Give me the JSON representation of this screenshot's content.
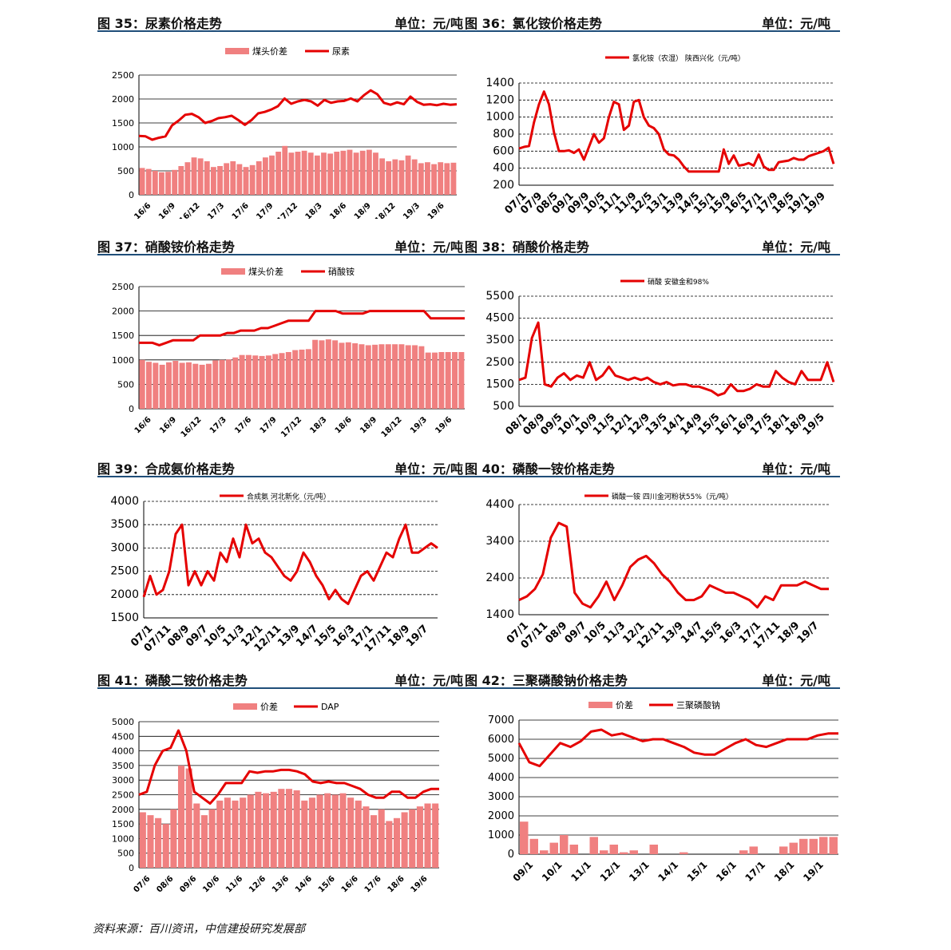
{
  "source": "资料来源：百川资讯，中信建投研究发展部",
  "colors": {
    "line": "#e50000",
    "bar": "#f08080",
    "grid": "#000000",
    "rule": "#1f4e79"
  },
  "chart_data": [
    {
      "id": "c35",
      "type": "bar+line",
      "title": "图 35：尿素价格走势",
      "unit": "单位：元/吨",
      "ylim": [
        0,
        2500
      ],
      "yticks": [
        0,
        500,
        1000,
        1500,
        2000,
        2500
      ],
      "xticks": [
        "16/6",
        "16/9",
        "16/12",
        "17/3",
        "17/6",
        "17/9",
        "17/12",
        "18/3",
        "18/6",
        "18/9",
        "18/12",
        "19/3",
        "19/6"
      ],
      "bar_name": "煤头价差",
      "line_name": "尿素",
      "line": [
        1230,
        1220,
        1150,
        1190,
        1220,
        1450,
        1550,
        1670,
        1690,
        1620,
        1500,
        1540,
        1600,
        1620,
        1650,
        1560,
        1460,
        1560,
        1700,
        1730,
        1780,
        1850,
        2010,
        1900,
        1950,
        1980,
        1950,
        1860,
        1980,
        1920,
        1950,
        1960,
        2010,
        1950,
        2080,
        2180,
        2100,
        1920,
        1880,
        1930,
        1890,
        2050,
        1940,
        1880,
        1890,
        1870,
        1900,
        1880,
        1890
      ],
      "bars": [
        560,
        540,
        500,
        470,
        480,
        520,
        600,
        680,
        780,
        760,
        700,
        580,
        600,
        660,
        700,
        640,
        580,
        620,
        700,
        780,
        820,
        900,
        1020,
        880,
        900,
        920,
        880,
        820,
        880,
        860,
        900,
        920,
        940,
        880,
        920,
        940,
        880,
        760,
        700,
        740,
        720,
        820,
        740,
        660,
        680,
        640,
        680,
        660,
        670
      ]
    },
    {
      "id": "c36",
      "type": "line",
      "title": "图 36：氯化铵价格走势",
      "unit": "单位：元/吨",
      "ylim": [
        200,
        1400
      ],
      "yticks": [
        200,
        400,
        600,
        800,
        1000,
        1200,
        1400
      ],
      "xticks": [
        "07/1",
        "07/9",
        "08/5",
        "09/1",
        "09/9",
        "10/5",
        "11/1",
        "11/9",
        "12/5",
        "13/1",
        "13/9",
        "14/5",
        "15/1",
        "15/9",
        "16/5",
        "17/1",
        "17/9",
        "18/5",
        "19/1",
        "19/9"
      ],
      "line_name": "氯化铵（农湿） 陕西兴化（元/吨）",
      "line": [
        630,
        650,
        660,
        940,
        1150,
        1300,
        1150,
        820,
        600,
        600,
        610,
        580,
        620,
        500,
        650,
        800,
        700,
        750,
        1000,
        1180,
        1150,
        850,
        900,
        1180,
        1200,
        1000,
        900,
        870,
        800,
        620,
        560,
        550,
        500,
        420,
        360,
        360,
        360,
        360,
        360,
        360,
        360,
        620,
        450,
        550,
        430,
        440,
        460,
        430,
        560,
        420,
        380,
        380,
        470,
        480,
        490,
        520,
        500,
        500,
        540,
        560,
        580,
        600,
        640,
        450
      ]
    },
    {
      "id": "c37",
      "type": "bar+line",
      "title": "图 37：硝酸铵价格走势",
      "unit": "单位：元/吨",
      "ylim": [
        0,
        2500
      ],
      "yticks": [
        0,
        500,
        1000,
        1500,
        2000,
        2500
      ],
      "xticks": [
        "16/6",
        "16/9",
        "16/12",
        "17/3",
        "17/6",
        "17/9",
        "17/12",
        "18/3",
        "18/6",
        "18/9",
        "18/12",
        "19/3",
        "19/6"
      ],
      "bar_name": "煤头价差",
      "line_name": "硝酸铵",
      "line": [
        1350,
        1350,
        1350,
        1300,
        1350,
        1400,
        1400,
        1400,
        1400,
        1500,
        1500,
        1500,
        1500,
        1550,
        1550,
        1600,
        1600,
        1600,
        1650,
        1650,
        1700,
        1750,
        1800,
        1800,
        1800,
        1800,
        2000,
        2000,
        2000,
        2000,
        1950,
        1950,
        1950,
        1950,
        2000,
        2000,
        2000,
        2000,
        2000,
        2000,
        2000,
        2000,
        2000,
        1850,
        1850,
        1850,
        1850,
        1850,
        1850
      ],
      "bars": [
        1000,
        960,
        940,
        900,
        950,
        980,
        940,
        950,
        920,
        900,
        920,
        990,
        1000,
        1010,
        1050,
        1100,
        1100,
        1090,
        1080,
        1090,
        1120,
        1140,
        1160,
        1200,
        1210,
        1220,
        1410,
        1400,
        1420,
        1400,
        1350,
        1360,
        1340,
        1320,
        1300,
        1310,
        1320,
        1320,
        1320,
        1320,
        1300,
        1300,
        1280,
        1150,
        1150,
        1160,
        1160,
        1160,
        1160
      ]
    },
    {
      "id": "c38",
      "type": "line",
      "title": "图 38：硝酸价格走势",
      "unit": "单位：元/吨",
      "ylim": [
        500,
        5500
      ],
      "yticks": [
        500,
        1500,
        2500,
        3500,
        4500,
        5500
      ],
      "xticks": [
        "08/1",
        "08/9",
        "09/5",
        "10/1",
        "10/9",
        "11/5",
        "12/1",
        "12/9",
        "13/5",
        "14/1",
        "14/9",
        "15/5",
        "16/1",
        "16/9",
        "17/5",
        "18/1",
        "18/9",
        "19/5"
      ],
      "line_name": "硝酸 安徽金和98%",
      "line": [
        1700,
        1800,
        3600,
        4300,
        1500,
        1400,
        1800,
        2000,
        1700,
        1900,
        1800,
        2500,
        1700,
        1900,
        2300,
        1900,
        1800,
        1700,
        1800,
        1700,
        1800,
        1600,
        1500,
        1600,
        1450,
        1500,
        1500,
        1400,
        1400,
        1300,
        1200,
        1000,
        1100,
        1500,
        1200,
        1200,
        1300,
        1500,
        1400,
        1400,
        2100,
        1800,
        1600,
        1500,
        2100,
        1700,
        1700,
        1700,
        2500,
        1600
      ]
    },
    {
      "id": "c39",
      "type": "line",
      "title": "图 39：合成氨价格走势",
      "unit": "单位：元/吨",
      "ylim": [
        1500,
        4000
      ],
      "yticks": [
        1500,
        2000,
        2500,
        3000,
        3500,
        4000
      ],
      "xticks": [
        "07/1",
        "07/11",
        "08/9",
        "09/7",
        "10/5",
        "11/3",
        "12/1",
        "12/11",
        "13/9",
        "14/7",
        "15/5",
        "16/3",
        "17/1",
        "17/11",
        "18/9",
        "19/7"
      ],
      "line_name": "合成氨 河北新化（元/吨）",
      "line": [
        1950,
        2400,
        2000,
        2100,
        2500,
        3300,
        3500,
        2200,
        2500,
        2200,
        2500,
        2300,
        2900,
        2700,
        3200,
        2800,
        3500,
        3100,
        3200,
        2900,
        2800,
        2600,
        2400,
        2300,
        2500,
        2900,
        2700,
        2400,
        2200,
        1900,
        2100,
        1900,
        1800,
        2100,
        2400,
        2500,
        2300,
        2600,
        2900,
        2800,
        3200,
        3500,
        2900,
        2900,
        3000,
        3100,
        3000
      ]
    },
    {
      "id": "c40",
      "type": "line",
      "title": "图 40：磷酸一铵价格走势",
      "unit": "单位：元/吨",
      "ylim": [
        1400,
        4400
      ],
      "yticks": [
        1400,
        2400,
        3400,
        4400
      ],
      "xticks": [
        "07/1",
        "07/11",
        "08/9",
        "09/7",
        "10/5",
        "11/3",
        "12/1",
        "12/11",
        "13/9",
        "14/7",
        "15/5",
        "16/3",
        "17/1",
        "17/11",
        "18/9",
        "19/7"
      ],
      "line_name": "磷酸一铵 四川金河粉状55%（元/吨）",
      "line": [
        1800,
        1900,
        2100,
        2500,
        3500,
        3900,
        3800,
        2000,
        1700,
        1600,
        1900,
        2300,
        1800,
        2200,
        2700,
        2900,
        3000,
        2800,
        2500,
        2300,
        2000,
        1800,
        1800,
        1900,
        2200,
        2100,
        2000,
        2000,
        1900,
        1800,
        1600,
        1900,
        1800,
        2200,
        2200,
        2200,
        2300,
        2200,
        2100,
        2100
      ]
    },
    {
      "id": "c41",
      "type": "bar+line",
      "title": "图 41：磷酸二铵价格走势",
      "unit": "单位：元/吨",
      "ylim": [
        0,
        5000
      ],
      "yticks": [
        0,
        500,
        1000,
        1500,
        2000,
        2500,
        3000,
        3500,
        4000,
        4500,
        5000
      ],
      "xticks": [
        "07/6",
        "08/6",
        "09/6",
        "10/6",
        "11/6",
        "12/6",
        "13/6",
        "14/6",
        "15/6",
        "16/6",
        "17/6",
        "18/6",
        "19/6"
      ],
      "bar_name": "价差",
      "line_name": "DAP",
      "line": [
        2500,
        2600,
        3500,
        4000,
        4100,
        4700,
        4000,
        2600,
        2400,
        2200,
        2500,
        2900,
        2900,
        2900,
        3300,
        3250,
        3300,
        3300,
        3350,
        3350,
        3300,
        3200,
        2950,
        2900,
        2950,
        2900,
        2900,
        2800,
        2700,
        2500,
        2400,
        2400,
        2600,
        2600,
        2400,
        2400,
        2600,
        2700,
        2700
      ],
      "bars": [
        1900,
        1800,
        1700,
        1500,
        2000,
        3500,
        3400,
        2200,
        1800,
        2000,
        2300,
        2400,
        2300,
        2400,
        2500,
        2600,
        2550,
        2600,
        2700,
        2700,
        2650,
        2300,
        2400,
        2500,
        2550,
        2500,
        2550,
        2400,
        2300,
        2100,
        1800,
        2000,
        1600,
        1700,
        1900,
        2000,
        2100,
        2200,
        2200
      ]
    },
    {
      "id": "c42",
      "type": "bar+line",
      "title": "图 42：三聚磷酸钠价格走势",
      "unit": "单位：元/吨",
      "ylim": [
        0,
        7000
      ],
      "yticks": [
        0,
        1000,
        2000,
        3000,
        4000,
        5000,
        6000,
        7000
      ],
      "xticks": [
        "09/1",
        "10/1",
        "11/1",
        "12/1",
        "13/1",
        "14/1",
        "15/1",
        "16/1",
        "17/1",
        "18/1",
        "19/1"
      ],
      "bar_name": "价差",
      "line_name": "三聚磷酸钠",
      "line": [
        5800,
        4800,
        4600,
        5200,
        5800,
        5600,
        5900,
        6400,
        6500,
        6200,
        6300,
        6100,
        5900,
        6000,
        6000,
        5800,
        5600,
        5300,
        5200,
        5200,
        5500,
        5800,
        6000,
        5700,
        5600,
        5800,
        6000,
        6000,
        6000,
        6200,
        6300,
        6300
      ],
      "bars": [
        1700,
        800,
        200,
        600,
        1000,
        500,
        0,
        900,
        200,
        500,
        100,
        200,
        0,
        500,
        0,
        0,
        100,
        0,
        0,
        0,
        0,
        0,
        200,
        400,
        0,
        0,
        400,
        600,
        800,
        800,
        900,
        900
      ]
    }
  ]
}
